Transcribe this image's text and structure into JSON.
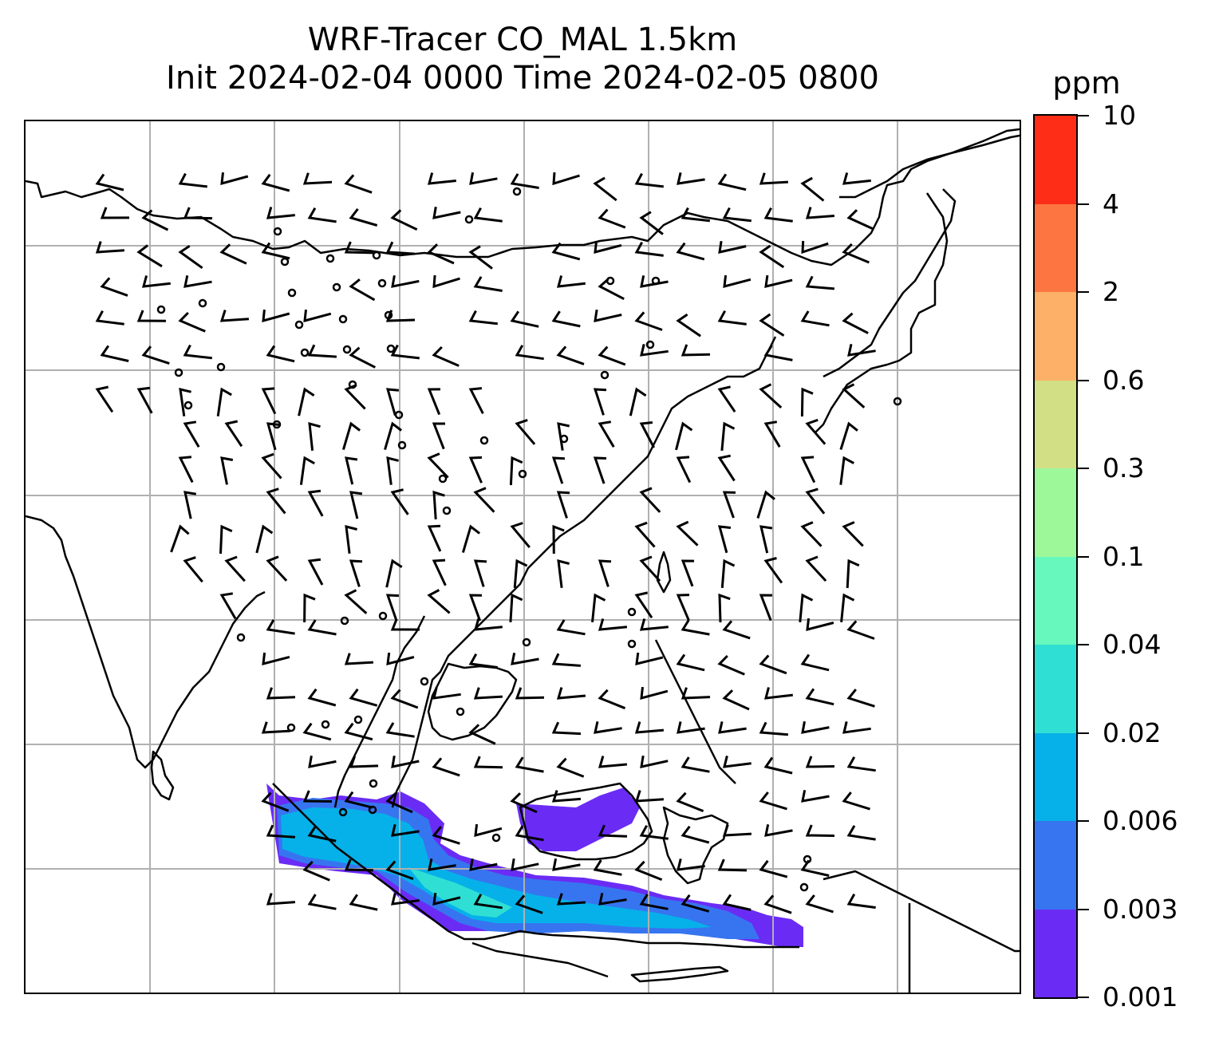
{
  "title": {
    "line1": "WRF-Tracer CO_MAL 1.5km",
    "line2": "Init 2024-02-04 0000 Time 2024-02-05 0800"
  },
  "colorbar": {
    "unit": "ppm",
    "levels": [
      "0.001",
      "0.003",
      "0.006",
      "0.02",
      "0.04",
      "0.1",
      "0.3",
      "0.6",
      "2",
      "4",
      "10"
    ],
    "colors": [
      "#6a2cf5",
      "#3775f0",
      "#06b1e9",
      "#30dfd4",
      "#67f8bd",
      "#9df89a",
      "#d2df85",
      "#fdb067",
      "#fd7641",
      "#fd2d18"
    ]
  },
  "map": {
    "features": [
      "coastlines",
      "country-borders",
      "gridlines",
      "wind-barbs",
      "calm-wind-circles",
      "tracer-concentration-fill"
    ],
    "colors": {
      "coastline": "#000000",
      "gridline": "#b0b0b0",
      "barb": "#000000"
    }
  }
}
